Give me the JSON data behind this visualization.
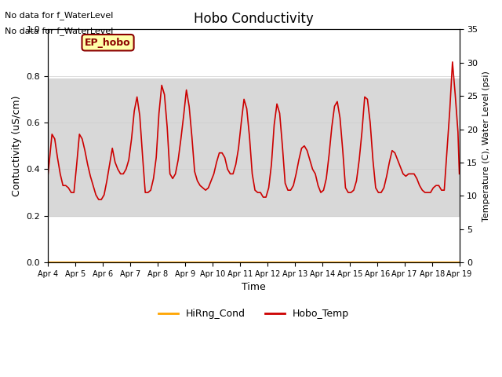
{
  "title": "Hobo Conductivity",
  "xlabel": "Time",
  "ylabel_left": "Contuctivity (uS/cm)",
  "ylabel_right": "Temperature (C), Water Level (psi)",
  "ylim_left": [
    0.0,
    1.0
  ],
  "ylim_right": [
    0,
    35
  ],
  "xlim": [
    0,
    15
  ],
  "xtick_labels": [
    "Apr 4",
    "Apr 5",
    "Apr 6",
    "Apr 7",
    "Apr 8",
    "Apr 9",
    "Apr 10",
    "Apr 11",
    "Apr 12",
    "Apr 13",
    "Apr 14",
    "Apr 15",
    "Apr 16",
    "Apr 17",
    "Apr 18",
    "Apr 19"
  ],
  "xtick_positions": [
    0,
    1,
    2,
    3,
    4,
    5,
    6,
    7,
    8,
    9,
    10,
    11,
    12,
    13,
    14,
    15
  ],
  "hirng_cond_y": 0.0,
  "hirng_color": "#FFA500",
  "hobo_temp_color": "#CC0000",
  "shade_ymin": 0.2,
  "shade_ymax": 0.79,
  "shade_color": "#d8d8d8",
  "ep_hobo_label": "EP_hobo",
  "nodata_text1": "No data for f_WaterLevel",
  "nodata_text2": "No data for f_WaterLevel",
  "background_color": "#ffffff",
  "hobo_temp_x": [
    0.0,
    0.15,
    0.25,
    0.35,
    0.45,
    0.55,
    0.65,
    0.75,
    0.85,
    0.95,
    1.05,
    1.15,
    1.25,
    1.35,
    1.45,
    1.55,
    1.65,
    1.75,
    1.85,
    1.95,
    2.05,
    2.15,
    2.25,
    2.35,
    2.45,
    2.55,
    2.65,
    2.75,
    2.85,
    2.95,
    3.05,
    3.15,
    3.25,
    3.35,
    3.45,
    3.55,
    3.65,
    3.75,
    3.85,
    3.95,
    4.05,
    4.15,
    4.25,
    4.35,
    4.45,
    4.55,
    4.65,
    4.75,
    4.85,
    4.95,
    5.05,
    5.15,
    5.25,
    5.35,
    5.45,
    5.55,
    5.65,
    5.75,
    5.85,
    5.95,
    6.05,
    6.15,
    6.25,
    6.35,
    6.45,
    6.55,
    6.65,
    6.75,
    6.85,
    6.95,
    7.05,
    7.15,
    7.25,
    7.35,
    7.45,
    7.55,
    7.65,
    7.75,
    7.85,
    7.95,
    8.05,
    8.15,
    8.25,
    8.35,
    8.45,
    8.55,
    8.65,
    8.75,
    8.85,
    8.95,
    9.05,
    9.15,
    9.25,
    9.35,
    9.45,
    9.55,
    9.65,
    9.75,
    9.85,
    9.95,
    10.05,
    10.15,
    10.25,
    10.35,
    10.45,
    10.55,
    10.65,
    10.75,
    10.85,
    10.95,
    11.05,
    11.15,
    11.25,
    11.35,
    11.45,
    11.55,
    11.65,
    11.75,
    11.85,
    11.95,
    12.05,
    12.15,
    12.25,
    12.35,
    12.45,
    12.55,
    12.65,
    12.75,
    12.85,
    12.95,
    13.05,
    13.15,
    13.25,
    13.35,
    13.45,
    13.55,
    13.65,
    13.75,
    13.85,
    13.95,
    14.05,
    14.15,
    14.25,
    14.35,
    14.45,
    14.55,
    14.65,
    14.75,
    14.85,
    14.95,
    15.0
  ],
  "hobo_temp_y": [
    0.37,
    0.55,
    0.53,
    0.45,
    0.38,
    0.33,
    0.33,
    0.32,
    0.3,
    0.3,
    0.42,
    0.55,
    0.53,
    0.48,
    0.42,
    0.37,
    0.33,
    0.29,
    0.27,
    0.27,
    0.29,
    0.35,
    0.42,
    0.49,
    0.43,
    0.4,
    0.38,
    0.38,
    0.4,
    0.44,
    0.53,
    0.65,
    0.71,
    0.63,
    0.46,
    0.3,
    0.3,
    0.31,
    0.36,
    0.45,
    0.64,
    0.76,
    0.72,
    0.58,
    0.38,
    0.36,
    0.38,
    0.44,
    0.53,
    0.63,
    0.74,
    0.67,
    0.54,
    0.39,
    0.35,
    0.33,
    0.32,
    0.31,
    0.32,
    0.35,
    0.38,
    0.43,
    0.47,
    0.47,
    0.45,
    0.4,
    0.38,
    0.38,
    0.42,
    0.49,
    0.6,
    0.7,
    0.66,
    0.54,
    0.38,
    0.31,
    0.3,
    0.3,
    0.28,
    0.28,
    0.32,
    0.42,
    0.59,
    0.68,
    0.64,
    0.5,
    0.34,
    0.31,
    0.31,
    0.33,
    0.38,
    0.44,
    0.49,
    0.5,
    0.48,
    0.44,
    0.4,
    0.38,
    0.33,
    0.3,
    0.31,
    0.36,
    0.46,
    0.58,
    0.67,
    0.69,
    0.62,
    0.48,
    0.32,
    0.3,
    0.3,
    0.31,
    0.35,
    0.44,
    0.56,
    0.71,
    0.7,
    0.6,
    0.44,
    0.32,
    0.3,
    0.3,
    0.32,
    0.37,
    0.43,
    0.48,
    0.47,
    0.44,
    0.41,
    0.38,
    0.37,
    0.38,
    0.38,
    0.38,
    0.36,
    0.33,
    0.31,
    0.3,
    0.3,
    0.3,
    0.32,
    0.33,
    0.33,
    0.31,
    0.31,
    0.48,
    0.65,
    0.86,
    0.72,
    0.56,
    0.38
  ]
}
